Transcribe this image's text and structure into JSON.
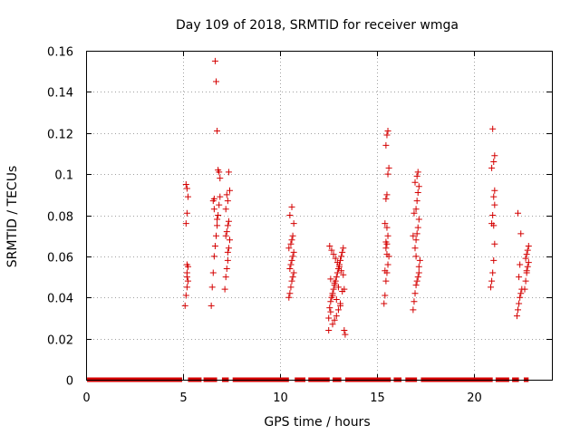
{
  "chart_data": {
    "type": "scatter",
    "title": "Day 109 of 2018, SRMTID for receiver wmga",
    "xlabel": "GPS time / hours",
    "ylabel": "SRMTID / TECUs",
    "xlim": [
      0,
      24
    ],
    "ylim": [
      0,
      0.16
    ],
    "xticks": [
      0,
      5,
      10,
      15,
      20
    ],
    "xtick_labels": [
      "0",
      "5",
      "10",
      "15",
      "20"
    ],
    "yticks": [
      0,
      0.02,
      0.04,
      0.06,
      0.08,
      0.1,
      0.12,
      0.14,
      0.16
    ],
    "ytick_labels": [
      "0",
      "0.02",
      "0.04",
      "0.06",
      "0.08",
      "0.1",
      "0.12",
      "0.14",
      "0.16"
    ],
    "grid": true,
    "marker": "+",
    "color": "#d40000",
    "zero_line_segments": [
      [
        0.05,
        4.95
      ],
      [
        5.25,
        5.95
      ],
      [
        6.05,
        6.75
      ],
      [
        7.0,
        7.35
      ],
      [
        7.55,
        10.45
      ],
      [
        10.75,
        11.3
      ],
      [
        11.45,
        12.55
      ],
      [
        12.7,
        13.15
      ],
      [
        13.35,
        15.7
      ],
      [
        15.85,
        16.25
      ],
      [
        16.45,
        17.05
      ],
      [
        17.25,
        20.95
      ],
      [
        21.1,
        21.8
      ],
      [
        21.95,
        22.3
      ],
      [
        22.55,
        22.8
      ]
    ],
    "series": [
      {
        "name": "SRMTID",
        "x": [
          5.1,
          5.15,
          5.2,
          5.2,
          5.25,
          5.2,
          5.15,
          5.2,
          5.25,
          5.2,
          5.15,
          5.2,
          5.25,
          6.45,
          6.5,
          6.55,
          6.6,
          6.65,
          6.7,
          6.75,
          6.8,
          6.85,
          6.9,
          6.9,
          6.85,
          6.8,
          6.75,
          6.7,
          6.65,
          6.6,
          6.55,
          6.6,
          6.75,
          7.15,
          7.2,
          7.25,
          7.3,
          7.35,
          7.4,
          7.2,
          7.25,
          7.3,
          7.35,
          7.2,
          7.3,
          7.25,
          7.4,
          7.35,
          7.3,
          10.45,
          10.5,
          10.55,
          10.6,
          10.65,
          10.7,
          10.5,
          10.55,
          10.6,
          10.65,
          10.7,
          10.45,
          10.55,
          10.6,
          10.65,
          10.7,
          10.5,
          10.6,
          12.5,
          12.55,
          12.6,
          12.65,
          12.7,
          12.75,
          12.8,
          12.85,
          12.9,
          12.95,
          13.0,
          13.05,
          13.1,
          13.15,
          13.2,
          13.25,
          12.55,
          12.65,
          12.75,
          12.85,
          12.95,
          13.05,
          13.15,
          13.25,
          12.6,
          12.8,
          13.0,
          13.2,
          12.7,
          12.9,
          13.1,
          12.5,
          12.6,
          12.8,
          12.9,
          13.0,
          13.1,
          12.7,
          13.3,
          13.35,
          13.3,
          15.35,
          15.4,
          15.45,
          15.5,
          15.55,
          15.6,
          15.45,
          15.5,
          15.55,
          15.5,
          15.4,
          15.45,
          15.5,
          15.55,
          15.6,
          15.45,
          15.5,
          15.55,
          15.4,
          15.5,
          15.45,
          16.85,
          16.9,
          16.95,
          17.0,
          17.05,
          17.1,
          17.15,
          17.2,
          16.95,
          17.0,
          17.05,
          17.1,
          17.15,
          16.9,
          17.0,
          17.05,
          17.1,
          17.15,
          16.95,
          17.05,
          17.1,
          17.0,
          17.15,
          16.85,
          20.85,
          20.9,
          20.95,
          21.0,
          21.05,
          20.9,
          20.95,
          21.0,
          21.05,
          20.9,
          21.0,
          21.05,
          20.95,
          21.0,
          21.05,
          22.2,
          22.25,
          22.3,
          22.35,
          22.4,
          22.45,
          22.3,
          22.35,
          22.4,
          22.25,
          22.6,
          22.65,
          22.7,
          22.75,
          22.8,
          22.65,
          22.7,
          22.75,
          22.8,
          22.7
        ],
        "y": [
          0.036,
          0.041,
          0.045,
          0.05,
          0.055,
          0.056,
          0.076,
          0.081,
          0.089,
          0.093,
          0.095,
          0.052,
          0.048,
          0.036,
          0.045,
          0.052,
          0.06,
          0.065,
          0.07,
          0.075,
          0.08,
          0.085,
          0.089,
          0.098,
          0.101,
          0.102,
          0.121,
          0.145,
          0.155,
          0.088,
          0.087,
          0.083,
          0.078,
          0.044,
          0.05,
          0.054,
          0.058,
          0.064,
          0.068,
          0.07,
          0.072,
          0.075,
          0.077,
          0.083,
          0.087,
          0.09,
          0.092,
          0.101,
          0.062,
          0.04,
          0.042,
          0.045,
          0.048,
          0.05,
          0.052,
          0.054,
          0.056,
          0.058,
          0.06,
          0.062,
          0.064,
          0.066,
          0.068,
          0.07,
          0.076,
          0.08,
          0.084,
          0.03,
          0.035,
          0.038,
          0.04,
          0.042,
          0.044,
          0.046,
          0.048,
          0.05,
          0.052,
          0.054,
          0.056,
          0.058,
          0.06,
          0.062,
          0.064,
          0.065,
          0.063,
          0.061,
          0.059,
          0.057,
          0.055,
          0.053,
          0.051,
          0.049,
          0.047,
          0.045,
          0.043,
          0.041,
          0.039,
          0.037,
          0.024,
          0.033,
          0.029,
          0.031,
          0.034,
          0.036,
          0.027,
          0.024,
          0.022,
          0.044,
          0.037,
          0.041,
          0.048,
          0.052,
          0.056,
          0.06,
          0.064,
          0.066,
          0.07,
          0.074,
          0.076,
          0.088,
          0.09,
          0.1,
          0.103,
          0.114,
          0.119,
          0.121,
          0.053,
          0.061,
          0.067,
          0.034,
          0.038,
          0.042,
          0.046,
          0.048,
          0.05,
          0.052,
          0.058,
          0.064,
          0.068,
          0.071,
          0.074,
          0.078,
          0.081,
          0.083,
          0.087,
          0.091,
          0.094,
          0.096,
          0.099,
          0.101,
          0.06,
          0.055,
          0.07,
          0.045,
          0.048,
          0.052,
          0.058,
          0.066,
          0.076,
          0.08,
          0.089,
          0.092,
          0.103,
          0.106,
          0.109,
          0.122,
          0.075,
          0.085,
          0.031,
          0.034,
          0.037,
          0.04,
          0.042,
          0.044,
          0.05,
          0.056,
          0.071,
          0.081,
          0.044,
          0.048,
          0.052,
          0.055,
          0.057,
          0.059,
          0.061,
          0.063,
          0.065,
          0.053
        ]
      }
    ]
  }
}
